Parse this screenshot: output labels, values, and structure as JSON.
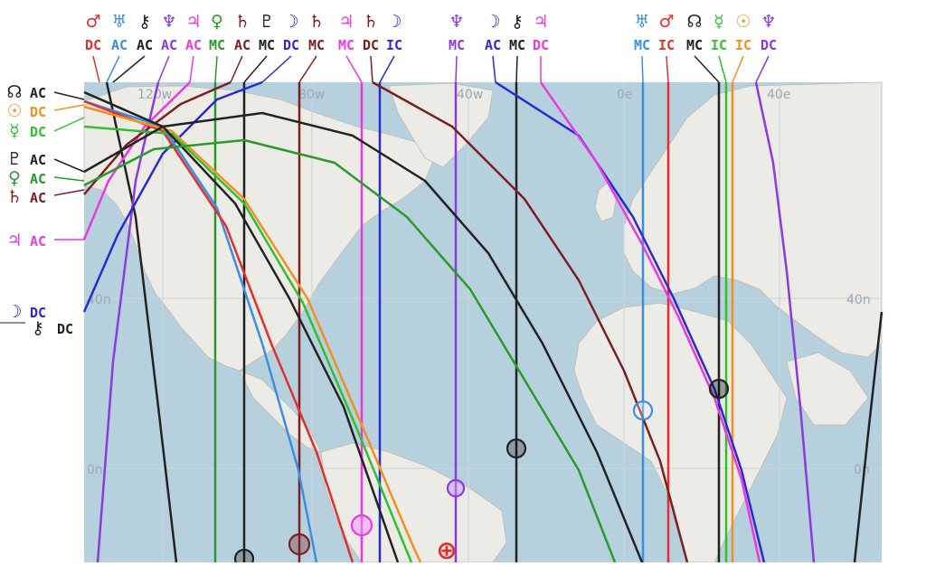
{
  "map": {
    "colors": {
      "ocean": "#b7d0dd",
      "land": "#ecebe6",
      "grid": "#c9d6df",
      "border": "#bfbab4"
    },
    "grid_labels": {
      "lon": [
        "120w",
        "80w",
        "40w",
        "0e",
        "40e"
      ],
      "lat": [
        "40n",
        "0n",
        "40n",
        "0n"
      ]
    }
  },
  "planets": {
    "mars": {
      "glyph": "♂",
      "color": "#e03030"
    },
    "uranus": {
      "glyph": "♅",
      "color": "#3a8fe0"
    },
    "chiron": {
      "glyph": "⚷",
      "color": "#222222"
    },
    "neptune": {
      "glyph": "♆",
      "color": "#8a3ae0"
    },
    "jupiter": {
      "glyph": "♃",
      "color": "#e83ae0"
    },
    "venus": {
      "glyph": "♀",
      "color": "#2a9a2a"
    },
    "saturn": {
      "glyph": "♄",
      "color": "#7a2020"
    },
    "pluto": {
      "glyph": "♇",
      "color": "#222222"
    },
    "moon": {
      "glyph": "☽",
      "color": "#2a2ad0"
    },
    "node": {
      "glyph": "☊",
      "color": "#222222"
    },
    "sun": {
      "glyph": "☉",
      "color": "#f09020"
    },
    "mercury": {
      "glyph": "☿",
      "color": "#30c030"
    }
  },
  "top_labels": [
    {
      "planet": "mars",
      "code": "DC"
    },
    {
      "planet": "uranus",
      "code": "AC"
    },
    {
      "planet": "chiron",
      "code": "AC"
    },
    {
      "planet": "neptune",
      "code": "AC"
    },
    {
      "planet": "jupiter",
      "code": "AC"
    },
    {
      "planet": "venus",
      "code": "MC"
    },
    {
      "planet": "saturn",
      "code": "AC"
    },
    {
      "planet": "pluto",
      "code": "MC"
    },
    {
      "planet": "moon",
      "code": "DC"
    },
    {
      "planet": "saturn",
      "code": "MC"
    },
    {
      "planet": "jupiter",
      "code": "MC"
    },
    {
      "planet": "saturn",
      "code": "DC"
    },
    {
      "planet": "moon",
      "code": "IC"
    },
    {
      "planet": "neptune",
      "code": "MC"
    },
    {
      "planet": "moon",
      "code": "AC"
    },
    {
      "planet": "chiron",
      "code": "MC"
    },
    {
      "planet": "jupiter",
      "code": "DC"
    },
    {
      "planet": "uranus",
      "code": "MC"
    },
    {
      "planet": "mars",
      "code": "IC"
    },
    {
      "planet": "node",
      "code": "MC"
    },
    {
      "planet": "mercury",
      "code": "IC"
    },
    {
      "planet": "sun",
      "code": "IC"
    },
    {
      "planet": "neptune",
      "code": "DC"
    }
  ],
  "left_labels": [
    {
      "planet": "node",
      "code": "AC"
    },
    {
      "planet": "sun",
      "code": "DC"
    },
    {
      "planet": "mercury",
      "code": "DC"
    },
    {
      "planet": "pluto",
      "code": "AC"
    },
    {
      "planet": "venus",
      "code": "AC"
    },
    {
      "planet": "saturn",
      "code": "AC"
    },
    {
      "planet": "jupiter",
      "code": "AC"
    },
    {
      "planet": "moon",
      "code": "DC"
    },
    {
      "planet": "chiron",
      "code": "DC"
    }
  ],
  "markers": [
    {
      "symbol": "⊕",
      "color": "#e03030",
      "name": "birth-location"
    }
  ]
}
